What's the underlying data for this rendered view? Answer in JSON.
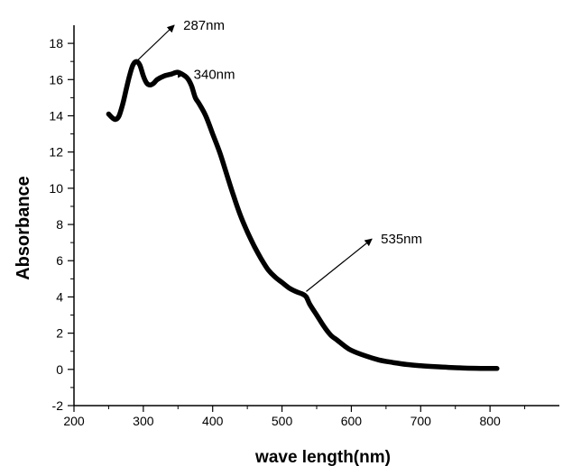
{
  "chart_data": {
    "type": "line",
    "title": "",
    "xlabel": "wave length(nm)",
    "ylabel": "Absorbance",
    "xlim": [
      200,
      900
    ],
    "ylim": [
      -2,
      19
    ],
    "grid": false,
    "x_ticks": [
      200,
      300,
      400,
      500,
      600,
      700,
      800
    ],
    "y_ticks": [
      -2,
      0,
      2,
      4,
      6,
      8,
      10,
      12,
      14,
      16,
      18
    ],
    "series": [
      {
        "color": "#000000",
        "x": [
          250,
          255,
          260,
          265,
          270,
          275,
          280,
          285,
          290,
          295,
          300,
          305,
          310,
          315,
          320,
          330,
          340,
          350,
          360,
          365,
          370,
          375,
          380,
          390,
          400,
          410,
          420,
          430,
          440,
          450,
          460,
          470,
          480,
          490,
          500,
          510,
          520,
          530,
          535,
          540,
          550,
          560,
          570,
          580,
          590,
          600,
          620,
          640,
          660,
          680,
          700,
          720,
          740,
          760,
          780,
          800,
          810
        ],
        "y": [
          14.1,
          13.9,
          13.8,
          14.0,
          14.6,
          15.4,
          16.2,
          16.8,
          17.0,
          16.8,
          16.2,
          15.8,
          15.7,
          15.8,
          16.0,
          16.2,
          16.3,
          16.4,
          16.2,
          16.0,
          15.6,
          15.0,
          14.7,
          14.0,
          13.0,
          12.0,
          10.8,
          9.6,
          8.5,
          7.6,
          6.8,
          6.1,
          5.5,
          5.1,
          4.8,
          4.5,
          4.3,
          4.15,
          4.0,
          3.6,
          3.0,
          2.4,
          1.9,
          1.6,
          1.3,
          1.05,
          0.75,
          0.52,
          0.38,
          0.27,
          0.2,
          0.15,
          0.11,
          0.08,
          0.06,
          0.05,
          0.05
        ]
      }
    ],
    "annotations": [
      {
        "text": "287nm",
        "x": 290,
        "y": 17.0,
        "text_x": 355,
        "text_y": 19.0
      },
      {
        "text": "340nm",
        "x": 335,
        "y": 16.3,
        "text_x": 370,
        "text_y": 16.3
      },
      {
        "text": "535nm",
        "x": 535,
        "y": 4.3,
        "text_x": 640,
        "text_y": 7.2
      }
    ]
  }
}
